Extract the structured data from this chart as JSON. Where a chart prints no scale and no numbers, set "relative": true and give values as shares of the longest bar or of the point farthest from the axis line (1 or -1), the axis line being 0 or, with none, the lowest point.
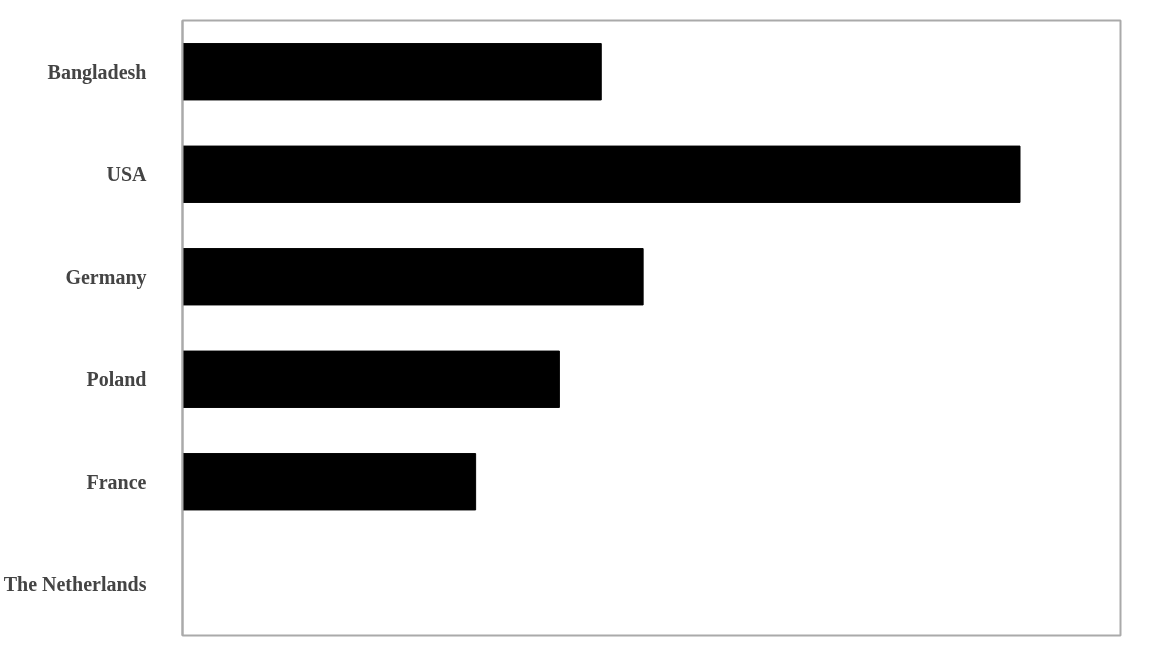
{
  "chart_data": {
    "type": "bar",
    "orientation": "horizontal",
    "relative": true,
    "categories": [
      "Bangladesh",
      "USA",
      "Germany",
      "Poland",
      "France",
      "The Netherlands"
    ],
    "values": [
      0.5,
      1,
      0.55,
      0.45,
      0.35,
      0
    ],
    "color": "#000000"
  }
}
